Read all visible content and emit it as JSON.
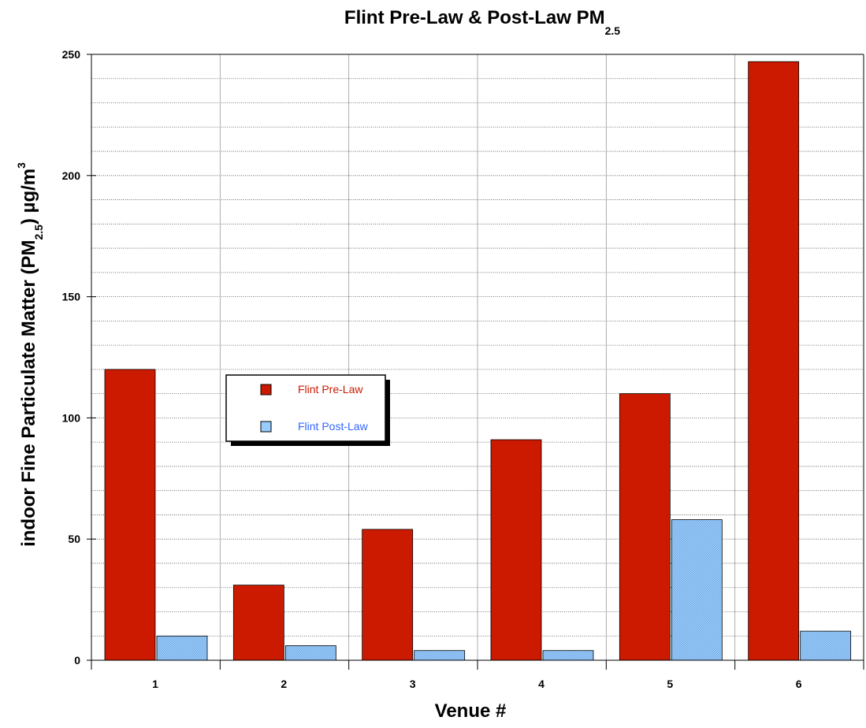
{
  "chart_data": {
    "type": "bar",
    "title": "Flint Pre-Law & Post-Law PM",
    "title_subscript": "2.5",
    "xlabel": "Venue #",
    "ylabel_parts": {
      "main": "indoor Fine Particulate Matter (PM",
      "sub": "2.5",
      "after": ") µg/m",
      "sup": "3"
    },
    "categories": [
      "1",
      "2",
      "3",
      "4",
      "5",
      "6"
    ],
    "series": [
      {
        "name": "Flint Pre-Law",
        "color": "#cc1a00",
        "label_color": "#cc1a00",
        "values": [
          120,
          31,
          54,
          91,
          110,
          247
        ]
      },
      {
        "name": "Flint Post-Law",
        "color": "#99ccff",
        "label_color": "#3366ff",
        "values": [
          10,
          6,
          4,
          4,
          58,
          12
        ]
      }
    ],
    "ylim": [
      0,
      250
    ],
    "yticks": [
      "0",
      "50",
      "100",
      "150",
      "200",
      "250"
    ],
    "grid": true,
    "legend_position": "center-left"
  }
}
